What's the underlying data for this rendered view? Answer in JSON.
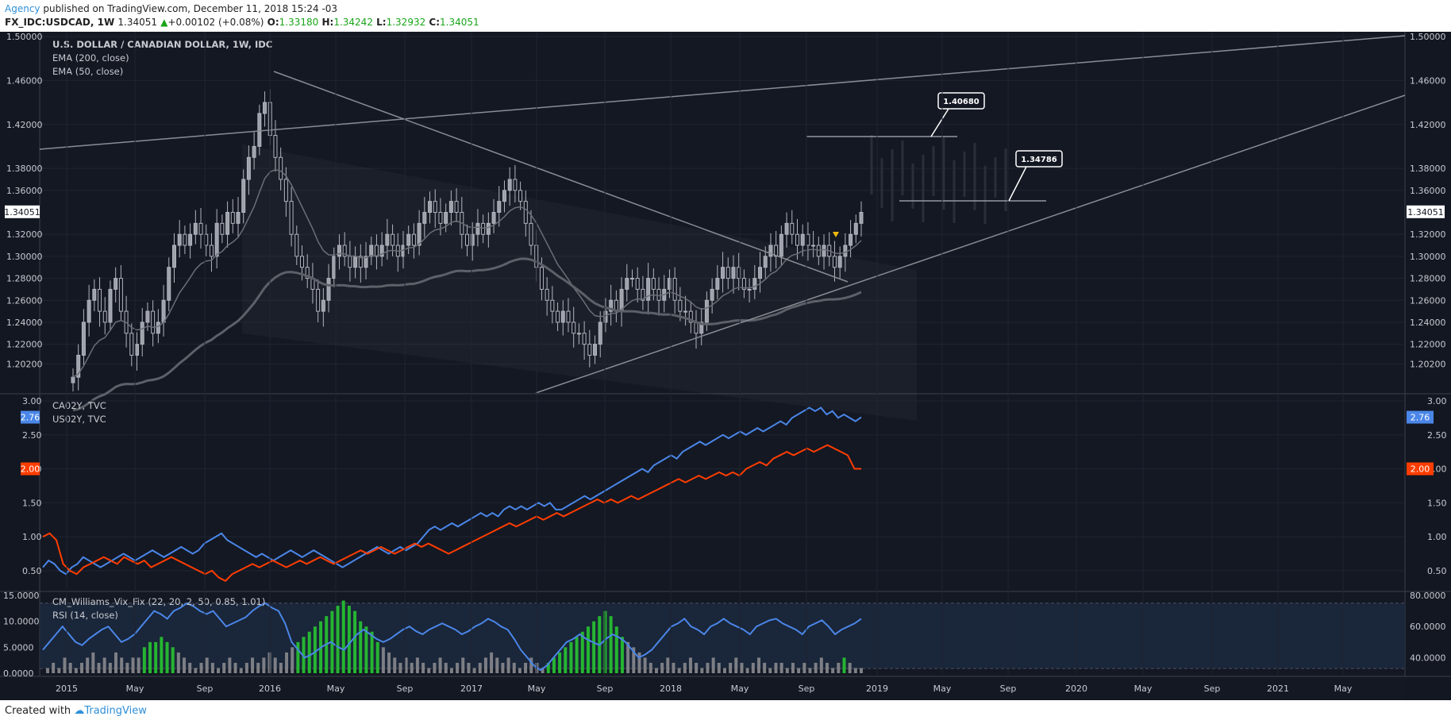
{
  "header": {
    "author": "Agency",
    "published": "published on TradingView.com, December 11, 2018 15:24 -03",
    "symbol": "FX_IDC:USDCAD, 1W",
    "last": "1.34051",
    "change_arrow": "▲",
    "change": "+0.00102 (+0.08%)",
    "o_label": "O:",
    "o": "1.33180",
    "h_label": "H:",
    "h": "1.34242",
    "l_label": "L:",
    "l": "1.32932",
    "c_label": "C:",
    "c": "1.34051"
  },
  "footer": {
    "created": "Created with",
    "brand": "TradingView"
  },
  "colors": {
    "bg": "#131722",
    "grid": "#1f2431",
    "candle": "#b2b5be",
    "ca": "#4a86e8",
    "us": "#ff3d00",
    "vixGreen": "#26b532",
    "vixGray": "#7d7f85",
    "rsi": "#4a86e8",
    "rsiBand": "#1b2a3f"
  },
  "chart_data": [
    {
      "type": "candlestick",
      "legend": [
        "U.S. DOLLAR / CANADIAN DOLLAR, 1W, IDC",
        "EMA (200, close)",
        "EMA (50, close)"
      ],
      "y_ticks": [
        "1.50000",
        "1.46000",
        "1.42000",
        "1.38000",
        "1.36000",
        "1.32000",
        "1.30000",
        "1.28000",
        "1.26000",
        "1.24000",
        "1.22000",
        "1.20200"
      ],
      "ylim": [
        1.18,
        1.5
      ],
      "last_price_label": "1.34051",
      "annotations": [
        "1.40680",
        "1.34786"
      ],
      "close_series": [
        1.19,
        1.21,
        1.24,
        1.26,
        1.27,
        1.25,
        1.24,
        1.27,
        1.28,
        1.25,
        1.23,
        1.21,
        1.22,
        1.24,
        1.25,
        1.23,
        1.24,
        1.26,
        1.29,
        1.31,
        1.32,
        1.31,
        1.32,
        1.33,
        1.32,
        1.31,
        1.3,
        1.33,
        1.32,
        1.34,
        1.33,
        1.34,
        1.37,
        1.39,
        1.4,
        1.43,
        1.44,
        1.41,
        1.39,
        1.37,
        1.35,
        1.32,
        1.3,
        1.29,
        1.28,
        1.27,
        1.25,
        1.26,
        1.28,
        1.3,
        1.31,
        1.3,
        1.29,
        1.3,
        1.29,
        1.3,
        1.31,
        1.3,
        1.31,
        1.32,
        1.31,
        1.3,
        1.31,
        1.32,
        1.31,
        1.33,
        1.34,
        1.35,
        1.34,
        1.33,
        1.34,
        1.35,
        1.34,
        1.32,
        1.31,
        1.32,
        1.33,
        1.32,
        1.33,
        1.34,
        1.35,
        1.36,
        1.37,
        1.36,
        1.35,
        1.33,
        1.31,
        1.29,
        1.27,
        1.26,
        1.25,
        1.24,
        1.25,
        1.24,
        1.23,
        1.23,
        1.22,
        1.21,
        1.22,
        1.24,
        1.25,
        1.26,
        1.25,
        1.27,
        1.28,
        1.28,
        1.27,
        1.26,
        1.28,
        1.27,
        1.26,
        1.27,
        1.28,
        1.26,
        1.25,
        1.25,
        1.24,
        1.23,
        1.24,
        1.26,
        1.27,
        1.28,
        1.29,
        1.28,
        1.29,
        1.28,
        1.27,
        1.27,
        1.28,
        1.29,
        1.3,
        1.31,
        1.3,
        1.32,
        1.33,
        1.32,
        1.31,
        1.32,
        1.31,
        1.31,
        1.3,
        1.31,
        1.3,
        1.29,
        1.3,
        1.31,
        1.32,
        1.33,
        1.34
      ]
    },
    {
      "type": "line",
      "legend": [
        "CA02Y, TVC",
        "US02Y, TVC"
      ],
      "y_ticks": [
        "3.00",
        "2.50",
        "2.00",
        "1.50",
        "1.00",
        "0.50"
      ],
      "ylim": [
        0.3,
        3.0
      ],
      "price_labels": [
        "2.76",
        "2.00"
      ],
      "series": [
        {
          "name": "CA02Y, TVC",
          "values": [
            0.55,
            0.65,
            0.6,
            0.5,
            0.45,
            0.55,
            0.6,
            0.7,
            0.65,
            0.6,
            0.55,
            0.6,
            0.65,
            0.7,
            0.75,
            0.7,
            0.65,
            0.7,
            0.75,
            0.8,
            0.75,
            0.7,
            0.75,
            0.8,
            0.85,
            0.8,
            0.75,
            0.8,
            0.9,
            0.95,
            1.0,
            1.05,
            0.95,
            0.9,
            0.85,
            0.8,
            0.75,
            0.7,
            0.75,
            0.7,
            0.65,
            0.7,
            0.75,
            0.8,
            0.75,
            0.7,
            0.75,
            0.8,
            0.75,
            0.7,
            0.65,
            0.6,
            0.55,
            0.6,
            0.65,
            0.7,
            0.75,
            0.8,
            0.85,
            0.8,
            0.75,
            0.8,
            0.85,
            0.8,
            0.85,
            0.9,
            1.0,
            1.1,
            1.15,
            1.1,
            1.15,
            1.2,
            1.15,
            1.2,
            1.25,
            1.3,
            1.35,
            1.3,
            1.35,
            1.3,
            1.4,
            1.45,
            1.4,
            1.45,
            1.4,
            1.45,
            1.5,
            1.45,
            1.5,
            1.4,
            1.4,
            1.45,
            1.5,
            1.55,
            1.6,
            1.55,
            1.6,
            1.65,
            1.7,
            1.75,
            1.8,
            1.85,
            1.9,
            1.95,
            2.0,
            1.95,
            2.05,
            2.1,
            2.15,
            2.2,
            2.15,
            2.25,
            2.3,
            2.35,
            2.4,
            2.35,
            2.4,
            2.45,
            2.5,
            2.45,
            2.5,
            2.55,
            2.5,
            2.55,
            2.6,
            2.55,
            2.6,
            2.65,
            2.7,
            2.65,
            2.75,
            2.8,
            2.85,
            2.9,
            2.85,
            2.9,
            2.8,
            2.85,
            2.75,
            2.8,
            2.75,
            2.7,
            2.76
          ]
        },
        {
          "name": "US02Y, TVC",
          "values": [
            1.0,
            1.05,
            0.95,
            0.6,
            0.5,
            0.45,
            0.55,
            0.6,
            0.65,
            0.7,
            0.65,
            0.6,
            0.7,
            0.65,
            0.6,
            0.65,
            0.55,
            0.6,
            0.65,
            0.7,
            0.65,
            0.6,
            0.55,
            0.5,
            0.45,
            0.5,
            0.4,
            0.35,
            0.45,
            0.5,
            0.55,
            0.6,
            0.55,
            0.6,
            0.65,
            0.6,
            0.55,
            0.6,
            0.65,
            0.6,
            0.65,
            0.7,
            0.65,
            0.6,
            0.65,
            0.7,
            0.75,
            0.8,
            0.75,
            0.8,
            0.85,
            0.8,
            0.75,
            0.8,
            0.85,
            0.9,
            0.85,
            0.9,
            0.85,
            0.8,
            0.75,
            0.8,
            0.85,
            0.9,
            0.95,
            1.0,
            1.05,
            1.1,
            1.15,
            1.2,
            1.15,
            1.2,
            1.25,
            1.3,
            1.25,
            1.3,
            1.35,
            1.3,
            1.35,
            1.4,
            1.45,
            1.5,
            1.55,
            1.5,
            1.55,
            1.5,
            1.55,
            1.6,
            1.55,
            1.6,
            1.65,
            1.7,
            1.75,
            1.8,
            1.85,
            1.8,
            1.85,
            1.9,
            1.85,
            1.9,
            1.95,
            1.9,
            1.95,
            1.9,
            2.0,
            2.05,
            2.1,
            2.05,
            2.15,
            2.2,
            2.25,
            2.2,
            2.25,
            2.3,
            2.25,
            2.3,
            2.35,
            2.3,
            2.25,
            2.2,
            2.0,
            2.0
          ]
        }
      ]
    },
    {
      "type": "bar+line",
      "legend": [
        "CM_Williams_Vix_Fix (22, 20, 2, 50, 0.85, 1.01)",
        "RSI (14, close)"
      ],
      "y_ticks_left": [
        "15.0000",
        "10.0000",
        "5.0000",
        "0.0000"
      ],
      "y_ticks_right": [
        "80.0000",
        "60.0000",
        "40.0000"
      ],
      "vix_ylim": [
        0,
        15
      ],
      "rsi_ylim": [
        30,
        80
      ],
      "vix_values": [
        1,
        2,
        1,
        3,
        2,
        1,
        2,
        3,
        4,
        2,
        3,
        2,
        4,
        3,
        2,
        3,
        3,
        5,
        6,
        6,
        7,
        6,
        5,
        4,
        3,
        2,
        1,
        2,
        3,
        2,
        1,
        2,
        3,
        2,
        1,
        2,
        3,
        2,
        3,
        4,
        3,
        2,
        4,
        5,
        6,
        7,
        8,
        9,
        10,
        11,
        12,
        13,
        14,
        13,
        12,
        10,
        9,
        8,
        6,
        5,
        4,
        3,
        2,
        3,
        2,
        3,
        2,
        1,
        2,
        3,
        2,
        1,
        2,
        3,
        2,
        1,
        2,
        3,
        4,
        3,
        2,
        3,
        2,
        1,
        2,
        3,
        2,
        1,
        2,
        3,
        4,
        5,
        6,
        7,
        8,
        9,
        10,
        11,
        12,
        11,
        9,
        7,
        6,
        5,
        4,
        3,
        2,
        1,
        2,
        3,
        2,
        1,
        2,
        3,
        2,
        1,
        2,
        3,
        2,
        1,
        2,
        3,
        2,
        1,
        2,
        3,
        2,
        1,
        2,
        2,
        1,
        2,
        1,
        2,
        1,
        2,
        3,
        2,
        1,
        2,
        3,
        2,
        1,
        1
      ],
      "vix_green_ranges": [
        [
          17,
          22
        ],
        [
          44,
          58
        ],
        [
          88,
          101
        ],
        [
          140,
          140
        ]
      ],
      "rsi_values": [
        45,
        50,
        55,
        60,
        55,
        50,
        48,
        52,
        55,
        58,
        60,
        55,
        50,
        52,
        55,
        60,
        65,
        70,
        68,
        65,
        70,
        72,
        75,
        73,
        70,
        68,
        70,
        65,
        60,
        62,
        64,
        66,
        70,
        73,
        75,
        72,
        70,
        62,
        50,
        45,
        40,
        42,
        45,
        48,
        50,
        47,
        45,
        50,
        55,
        58,
        55,
        52,
        50,
        52,
        55,
        58,
        60,
        57,
        55,
        58,
        60,
        62,
        60,
        58,
        55,
        57,
        60,
        62,
        65,
        63,
        60,
        58,
        52,
        45,
        40,
        35,
        32,
        35,
        40,
        45,
        50,
        52,
        55,
        52,
        50,
        48,
        52,
        55,
        53,
        50,
        45,
        40,
        42,
        45,
        50,
        55,
        60,
        62,
        65,
        60,
        58,
        55,
        60,
        62,
        65,
        62,
        60,
        58,
        55,
        60,
        62,
        64,
        65,
        62,
        60,
        58,
        55,
        60,
        62,
        64,
        60,
        55,
        58,
        60,
        62,
        65
      ]
    }
  ],
  "x_axis": [
    "2015",
    "May",
    "Sep",
    "2016",
    "May",
    "Sep",
    "2017",
    "May",
    "Sep",
    "2018",
    "May",
    "Sep",
    "2019",
    "May",
    "Sep",
    "2020",
    "May",
    "Sep",
    "2021",
    "May"
  ]
}
